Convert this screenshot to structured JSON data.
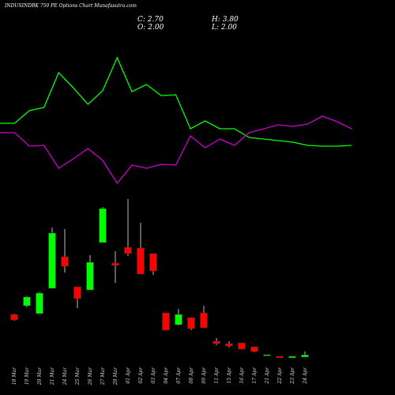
{
  "chart_data": [
    {
      "type": "line",
      "ylim": [
        0,
        200
      ],
      "series": [
        {
          "color": "#00ff00",
          "values": [
            84,
            84,
            100,
            104,
            148,
            129,
            108,
            125,
            167,
            124,
            133,
            119,
            120,
            77,
            87,
            77,
            77,
            66,
            64,
            62,
            60,
            56,
            55,
            55,
            56
          ]
        },
        {
          "color": "#cc00cc",
          "values": [
            72,
            72,
            55,
            56,
            27,
            39,
            52,
            37,
            8,
            31,
            27,
            32,
            31,
            68,
            53,
            64,
            56,
            72,
            77,
            82,
            80,
            83,
            93,
            86,
            77
          ]
        }
      ]
    },
    {
      "type": "candlestick",
      "title": "INDUSINDBK 750 PE Options Chart Munafasutra.com",
      "ohlc_labels": [
        "C: 2.70",
        "H: 3.80",
        "O: 2.00",
        "L: 2.00"
      ],
      "categories": [
        "18 Mar",
        "19 Mar",
        "20 Mar",
        "21 Mar",
        "24 Mar",
        "25 Mar",
        "26 Mar",
        "27 Mar",
        "28 Mar",
        "01 Apr",
        "02 Apr",
        "03 Apr",
        "04 Apr",
        "07 Apr",
        "08 Apr",
        "09 Apr",
        "11 Apr",
        "15 Apr",
        "16 Apr",
        "17 Apr",
        "21 Apr",
        "22 Apr",
        "23 Apr",
        "24 Apr"
      ],
      "open": [
        15.5,
        18.25,
        15.75,
        23.75,
        33.75,
        24.25,
        23.25,
        38.25,
        31.75,
        36.75,
        36.5,
        34.75,
        16,
        12.25,
        14.5,
        16,
        7,
        6.25,
        6.5,
        5.25,
        2.5,
        2.25,
        1.75,
        2.0
      ],
      "high": [
        15.75,
        21.25,
        22.5,
        43,
        42.5,
        24.25,
        34.25,
        49.5,
        35.5,
        52,
        44.5,
        34.75,
        16,
        17.25,
        14.5,
        18.25,
        8,
        7,
        6.5,
        5.25,
        2.75,
        2.25,
        2.25,
        3.8
      ],
      "low": [
        13.5,
        17.75,
        15.75,
        23.75,
        28.75,
        17.5,
        23.25,
        38.25,
        25.5,
        34,
        28.25,
        28,
        10.5,
        12,
        10.5,
        11.25,
        5.75,
        5,
        4.5,
        3.5,
        2.5,
        1.75,
        1.75,
        2.0
      ],
      "close": [
        13.75,
        21,
        22.25,
        41.25,
        30.75,
        20.5,
        32,
        49,
        31,
        34.75,
        28.25,
        29.25,
        10.5,
        15.5,
        11,
        11.25,
        6.25,
        5.5,
        4.5,
        3.75,
        2.75,
        1.75,
        2.25,
        2.7
      ],
      "up_color": "#00ff00",
      "down_color": "#ff0000",
      "ylim": [
        0,
        57.5
      ]
    }
  ]
}
